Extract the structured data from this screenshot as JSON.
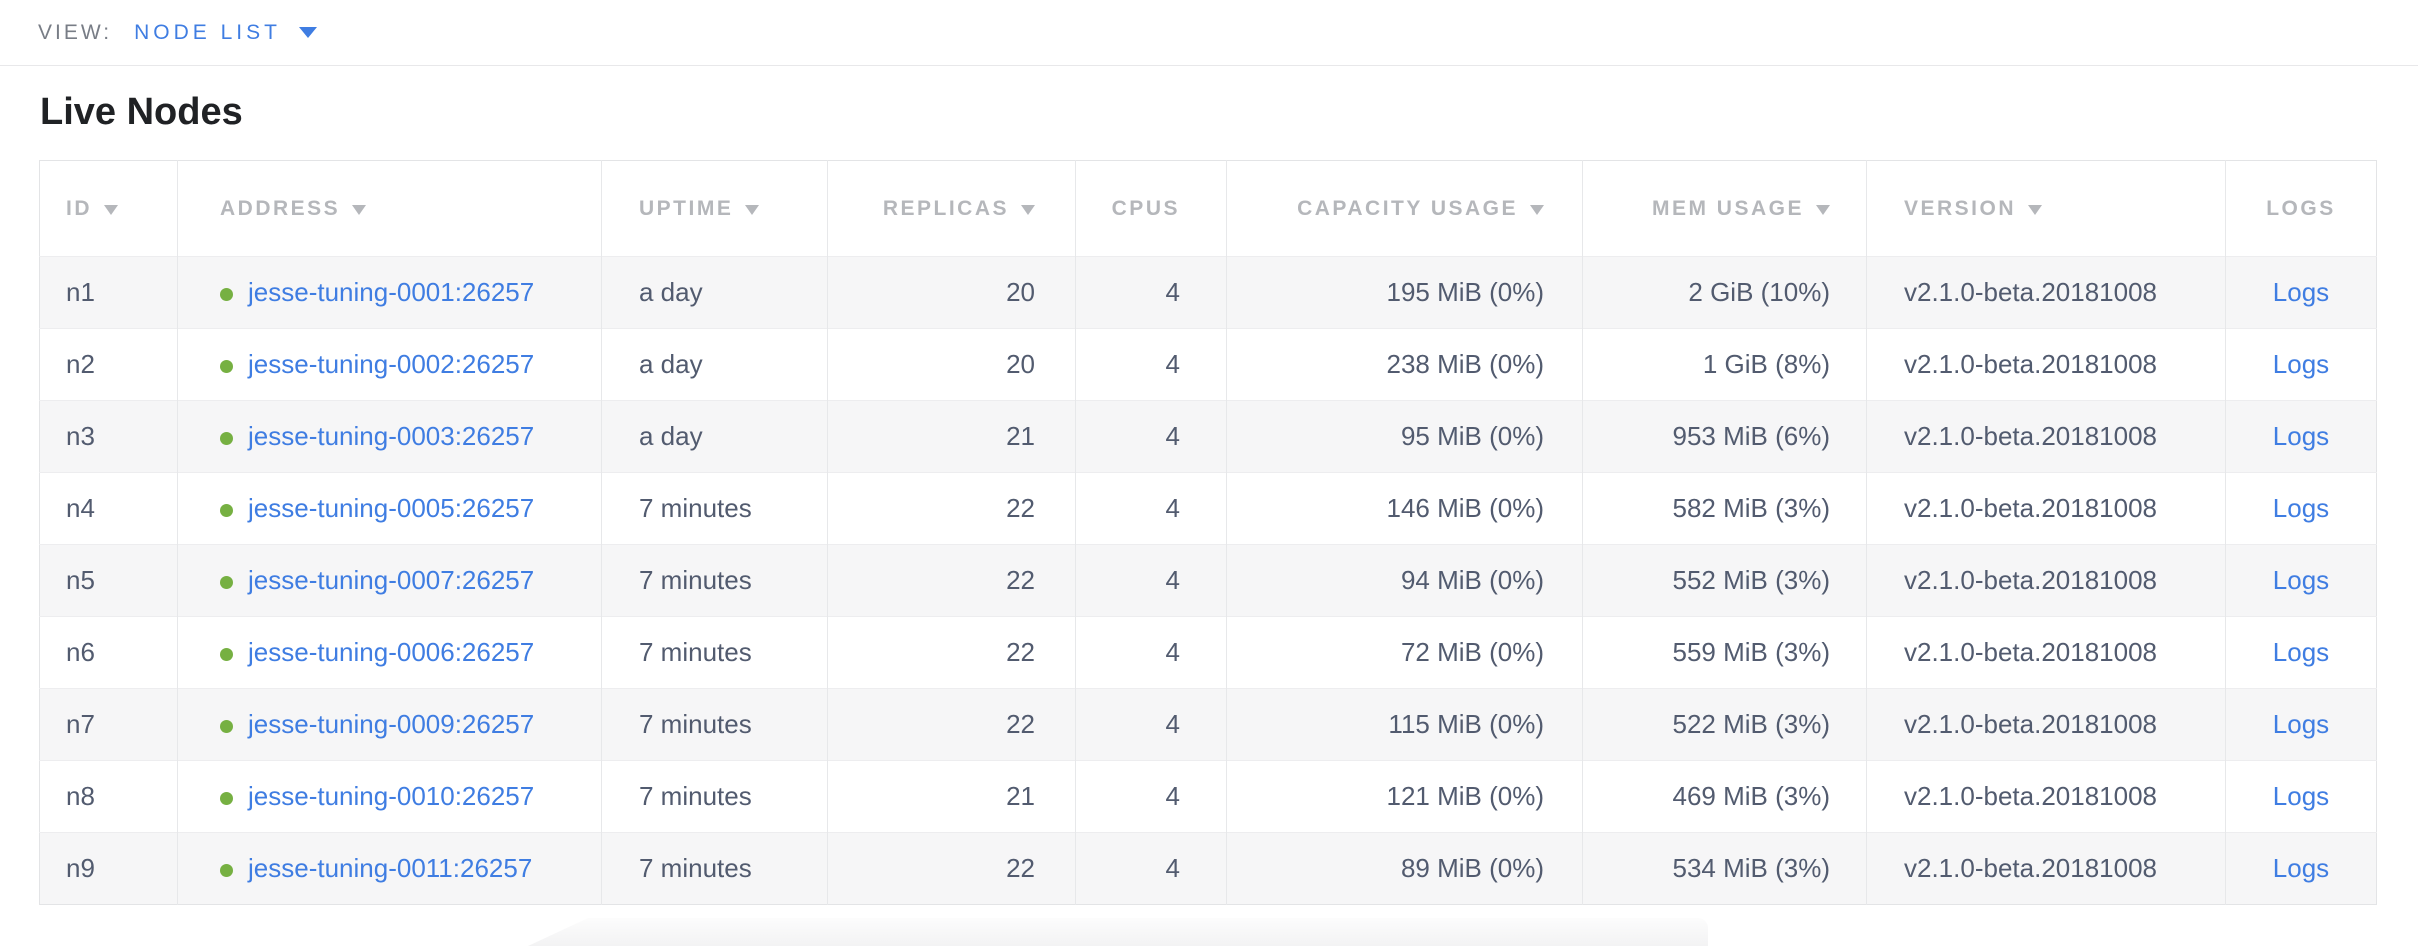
{
  "view_bar": {
    "label": "VIEW:",
    "selected": "NODE LIST"
  },
  "page": {
    "title": "Live Nodes"
  },
  "colors": {
    "accent_blue": "#3f7de2",
    "live_green": "#76b042",
    "header_gray": "#b5b7bb",
    "text_slate": "#525b6f",
    "stripe_gray": "#f6f6f7"
  },
  "table": {
    "columns": [
      {
        "key": "id",
        "label": "ID",
        "sortable": true,
        "align": "left"
      },
      {
        "key": "address",
        "label": "ADDRESS",
        "sortable": true,
        "align": "left"
      },
      {
        "key": "uptime",
        "label": "UPTIME",
        "sortable": true,
        "align": "left"
      },
      {
        "key": "replicas",
        "label": "REPLICAS",
        "sortable": true,
        "align": "right"
      },
      {
        "key": "cpus",
        "label": "CPUS",
        "sortable": false,
        "align": "right"
      },
      {
        "key": "capacity",
        "label": "CAPACITY USAGE",
        "sortable": true,
        "align": "right"
      },
      {
        "key": "mem",
        "label": "MEM USAGE",
        "sortable": true,
        "align": "right"
      },
      {
        "key": "version",
        "label": "VERSION",
        "sortable": true,
        "align": "left"
      },
      {
        "key": "logs",
        "label": "LOGS",
        "sortable": false,
        "align": "center"
      }
    ],
    "rows": [
      {
        "id": "n1",
        "status": "live",
        "address": "jesse-tuning-0001:26257",
        "uptime": "a day",
        "replicas": "20",
        "cpus": "4",
        "capacity": "195 MiB (0%)",
        "mem": "2 GiB (10%)",
        "version": "v2.1.0-beta.20181008",
        "logs": "Logs"
      },
      {
        "id": "n2",
        "status": "live",
        "address": "jesse-tuning-0002:26257",
        "uptime": "a day",
        "replicas": "20",
        "cpus": "4",
        "capacity": "238 MiB (0%)",
        "mem": "1 GiB (8%)",
        "version": "v2.1.0-beta.20181008",
        "logs": "Logs"
      },
      {
        "id": "n3",
        "status": "live",
        "address": "jesse-tuning-0003:26257",
        "uptime": "a day",
        "replicas": "21",
        "cpus": "4",
        "capacity": "95 MiB (0%)",
        "mem": "953 MiB (6%)",
        "version": "v2.1.0-beta.20181008",
        "logs": "Logs"
      },
      {
        "id": "n4",
        "status": "live",
        "address": "jesse-tuning-0005:26257",
        "uptime": "7 minutes",
        "replicas": "22",
        "cpus": "4",
        "capacity": "146 MiB (0%)",
        "mem": "582 MiB (3%)",
        "version": "v2.1.0-beta.20181008",
        "logs": "Logs"
      },
      {
        "id": "n5",
        "status": "live",
        "address": "jesse-tuning-0007:26257",
        "uptime": "7 minutes",
        "replicas": "22",
        "cpus": "4",
        "capacity": "94 MiB (0%)",
        "mem": "552 MiB (3%)",
        "version": "v2.1.0-beta.20181008",
        "logs": "Logs"
      },
      {
        "id": "n6",
        "status": "live",
        "address": "jesse-tuning-0006:26257",
        "uptime": "7 minutes",
        "replicas": "22",
        "cpus": "4",
        "capacity": "72 MiB (0%)",
        "mem": "559 MiB (3%)",
        "version": "v2.1.0-beta.20181008",
        "logs": "Logs"
      },
      {
        "id": "n7",
        "status": "live",
        "address": "jesse-tuning-0009:26257",
        "uptime": "7 minutes",
        "replicas": "22",
        "cpus": "4",
        "capacity": "115 MiB (0%)",
        "mem": "522 MiB (3%)",
        "version": "v2.1.0-beta.20181008",
        "logs": "Logs"
      },
      {
        "id": "n8",
        "status": "live",
        "address": "jesse-tuning-0010:26257",
        "uptime": "7 minutes",
        "replicas": "21",
        "cpus": "4",
        "capacity": "121 MiB (0%)",
        "mem": "469 MiB (3%)",
        "version": "v2.1.0-beta.20181008",
        "logs": "Logs"
      },
      {
        "id": "n9",
        "status": "live",
        "address": "jesse-tuning-0011:26257",
        "uptime": "7 minutes",
        "replicas": "22",
        "cpus": "4",
        "capacity": "89 MiB (0%)",
        "mem": "534 MiB (3%)",
        "version": "v2.1.0-beta.20181008",
        "logs": "Logs"
      }
    ]
  }
}
